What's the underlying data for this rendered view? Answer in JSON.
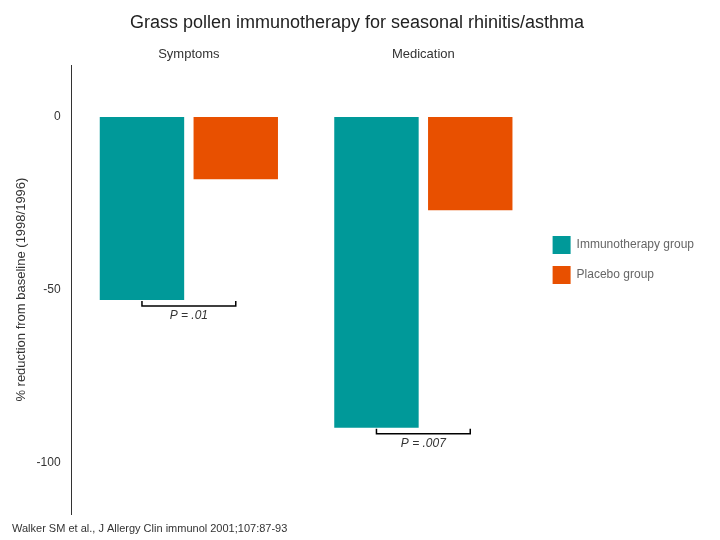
{
  "chart_data": {
    "type": "bar",
    "title": "Grass pollen immunotherapy for seasonal rhinitis/asthma",
    "y_label": "% reduction from baseline (1998/1996)",
    "categories": [
      "Symptoms",
      "Medication"
    ],
    "series": [
      {
        "name": "Immunotherapy\ngroup",
        "color": "#009999",
        "values": [
          -53,
          -90
        ]
      },
      {
        "name": "Placebo group",
        "color": "#E85000",
        "values": [
          -18,
          -27
        ]
      }
    ],
    "ylim": [
      -115,
      15
    ],
    "yticks": [
      0,
      -50,
      -100
    ],
    "grid": false,
    "legend": "right",
    "annotations": [
      {
        "text": "P = .01",
        "x": "Symptoms"
      },
      {
        "text": "P = .007",
        "x": "Medication"
      },
      {
        "text": "Walker SM et al., J Allergy Clin immunol 2001;107:87-93"
      }
    ]
  }
}
